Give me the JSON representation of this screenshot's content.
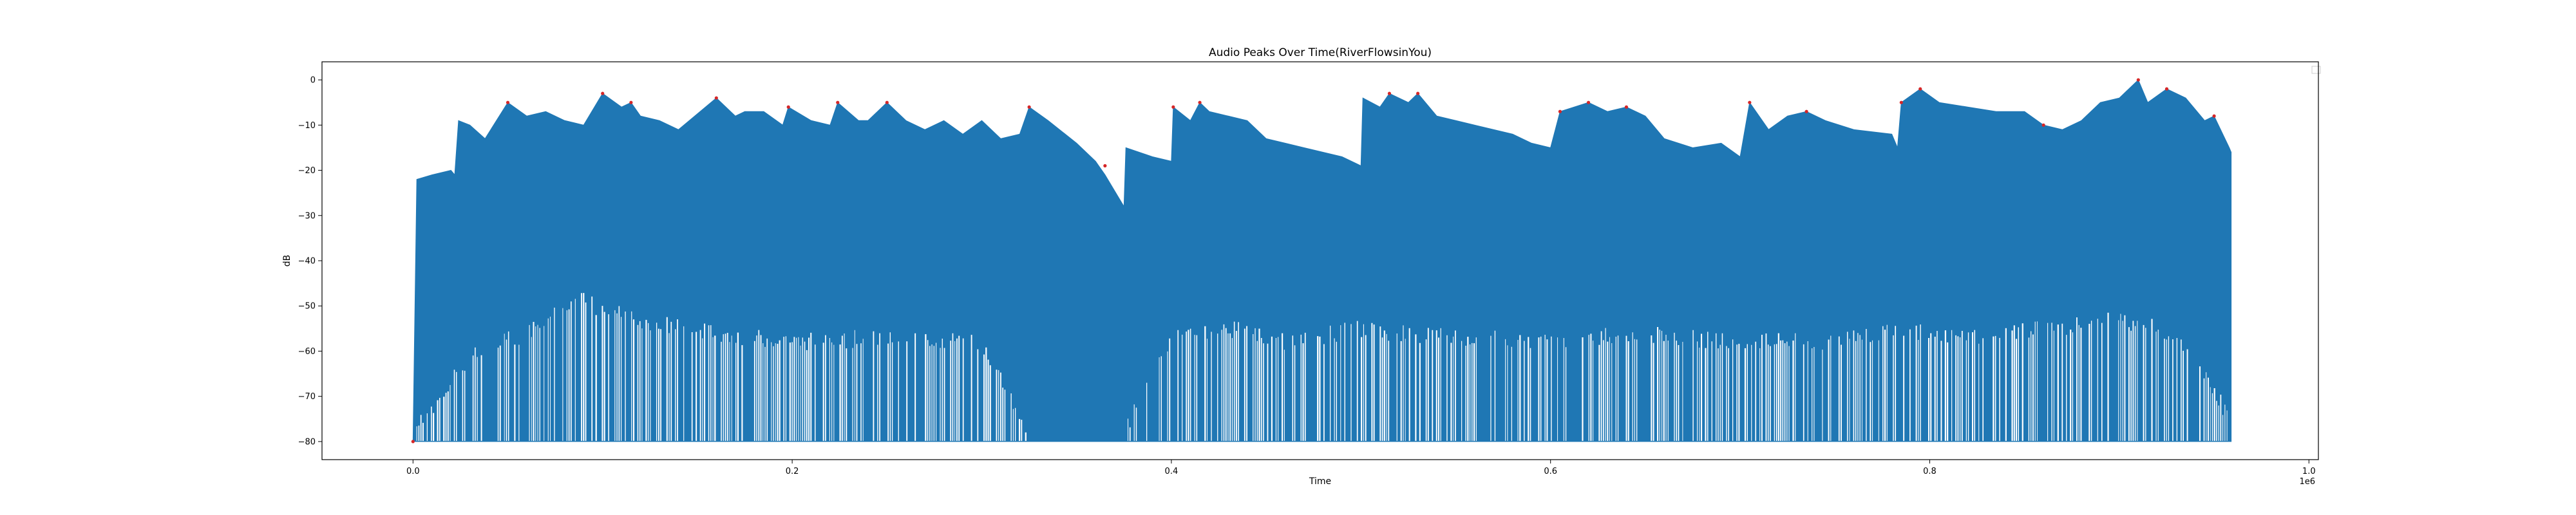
{
  "chart_data": {
    "type": "area",
    "title": "Audio Peaks Over Time(RiverFlowsinYou)",
    "xlabel": "Time",
    "ylabel": "dB",
    "x_offset_label": "1e6",
    "xlim": [
      -0.048,
      1.005
    ],
    "ylim": [
      -84,
      4
    ],
    "xticks": [
      0.0,
      0.2,
      0.4,
      0.6,
      0.8,
      1.0
    ],
    "xtick_labels": [
      "0.0",
      "0.2",
      "0.4",
      "0.6",
      "0.8",
      "1.0"
    ],
    "yticks": [
      0,
      -10,
      -20,
      -30,
      -40,
      -50,
      -60,
      -70,
      -80
    ],
    "ytick_labels": [
      "0",
      "−10",
      "−20",
      "−30",
      "−40",
      "−50",
      "−60",
      "−70",
      "−80"
    ],
    "grid": false,
    "legend": "top-right (empty)",
    "series": [
      {
        "kind": "signal",
        "color": "#1f77b4",
        "floor": -80,
        "upper_envelope": [
          [
            0.0,
            -80
          ],
          [
            0.002,
            -22
          ],
          [
            0.01,
            -21
          ],
          [
            0.02,
            -20
          ],
          [
            0.022,
            -21
          ],
          [
            0.024,
            -9
          ],
          [
            0.03,
            -10
          ],
          [
            0.038,
            -13
          ],
          [
            0.05,
            -5
          ],
          [
            0.06,
            -8
          ],
          [
            0.07,
            -7
          ],
          [
            0.08,
            -9
          ],
          [
            0.09,
            -10
          ],
          [
            0.1,
            -3
          ],
          [
            0.11,
            -6
          ],
          [
            0.115,
            -5
          ],
          [
            0.12,
            -8
          ],
          [
            0.13,
            -9
          ],
          [
            0.14,
            -11
          ],
          [
            0.16,
            -4
          ],
          [
            0.17,
            -8
          ],
          [
            0.175,
            -7
          ],
          [
            0.185,
            -7
          ],
          [
            0.195,
            -10
          ],
          [
            0.198,
            -6
          ],
          [
            0.21,
            -9
          ],
          [
            0.22,
            -10
          ],
          [
            0.224,
            -5
          ],
          [
            0.235,
            -9
          ],
          [
            0.24,
            -9
          ],
          [
            0.25,
            -5
          ],
          [
            0.26,
            -9
          ],
          [
            0.27,
            -11
          ],
          [
            0.28,
            -9
          ],
          [
            0.29,
            -12
          ],
          [
            0.3,
            -9
          ],
          [
            0.31,
            -13
          ],
          [
            0.32,
            -12
          ],
          [
            0.325,
            -6
          ],
          [
            0.335,
            -9
          ],
          [
            0.35,
            -14
          ],
          [
            0.36,
            -18
          ],
          [
            0.365,
            -21
          ],
          [
            0.375,
            -28
          ],
          [
            0.376,
            -15
          ],
          [
            0.39,
            -17
          ],
          [
            0.4,
            -18
          ],
          [
            0.401,
            -6
          ],
          [
            0.41,
            -9
          ],
          [
            0.415,
            -5
          ],
          [
            0.42,
            -7
          ],
          [
            0.43,
            -8
          ],
          [
            0.44,
            -9
          ],
          [
            0.45,
            -13
          ],
          [
            0.46,
            -14
          ],
          [
            0.47,
            -15
          ],
          [
            0.48,
            -16
          ],
          [
            0.49,
            -17
          ],
          [
            0.5,
            -19
          ],
          [
            0.501,
            -4
          ],
          [
            0.51,
            -6
          ],
          [
            0.515,
            -3
          ],
          [
            0.525,
            -5
          ],
          [
            0.53,
            -3
          ],
          [
            0.54,
            -8
          ],
          [
            0.55,
            -9
          ],
          [
            0.56,
            -10
          ],
          [
            0.57,
            -11
          ],
          [
            0.58,
            -12
          ],
          [
            0.59,
            -14
          ],
          [
            0.6,
            -15
          ],
          [
            0.605,
            -7
          ],
          [
            0.62,
            -5
          ],
          [
            0.63,
            -7
          ],
          [
            0.64,
            -6
          ],
          [
            0.65,
            -8
          ],
          [
            0.66,
            -13
          ],
          [
            0.675,
            -15
          ],
          [
            0.69,
            -14
          ],
          [
            0.7,
            -17
          ],
          [
            0.705,
            -5
          ],
          [
            0.715,
            -11
          ],
          [
            0.725,
            -8
          ],
          [
            0.735,
            -7
          ],
          [
            0.745,
            -9
          ],
          [
            0.76,
            -11
          ],
          [
            0.78,
            -12
          ],
          [
            0.783,
            -15
          ],
          [
            0.785,
            -5
          ],
          [
            0.795,
            -2
          ],
          [
            0.805,
            -5
          ],
          [
            0.82,
            -6
          ],
          [
            0.835,
            -7
          ],
          [
            0.85,
            -7
          ],
          [
            0.86,
            -10
          ],
          [
            0.87,
            -11
          ],
          [
            0.88,
            -9
          ],
          [
            0.89,
            -5
          ],
          [
            0.9,
            -4
          ],
          [
            0.91,
            0
          ],
          [
            0.915,
            -5
          ],
          [
            0.925,
            -2
          ],
          [
            0.935,
            -4
          ],
          [
            0.945,
            -9
          ],
          [
            0.95,
            -8
          ],
          [
            0.958,
            -15
          ],
          [
            0.959,
            -16
          ]
        ],
        "lower_envelope": [
          [
            0.0,
            -80
          ],
          [
            0.03,
            -63
          ],
          [
            0.06,
            -58
          ],
          [
            0.085,
            -50
          ],
          [
            0.1,
            -53
          ],
          [
            0.13,
            -56
          ],
          [
            0.16,
            -58
          ],
          [
            0.2,
            -60
          ],
          [
            0.25,
            -59
          ],
          [
            0.3,
            -60
          ],
          [
            0.325,
            -80
          ],
          [
            0.375,
            -80
          ],
          [
            0.4,
            -59
          ],
          [
            0.43,
            -57
          ],
          [
            0.46,
            -60
          ],
          [
            0.5,
            -57
          ],
          [
            0.52,
            -58
          ],
          [
            0.56,
            -59
          ],
          [
            0.6,
            -60
          ],
          [
            0.64,
            -58
          ],
          [
            0.7,
            -60
          ],
          [
            0.74,
            -60
          ],
          [
            0.785,
            -57
          ],
          [
            0.82,
            -59
          ],
          [
            0.86,
            -57
          ],
          [
            0.9,
            -55
          ],
          [
            0.93,
            -58
          ],
          [
            0.959,
            -77
          ]
        ]
      },
      {
        "kind": "peaks",
        "color": "#d62728",
        "points": [
          [
            0.0,
            -80
          ],
          [
            0.05,
            -5
          ],
          [
            0.1,
            -3
          ],
          [
            0.115,
            -5
          ],
          [
            0.16,
            -4
          ],
          [
            0.198,
            -6
          ],
          [
            0.224,
            -5
          ],
          [
            0.25,
            -5
          ],
          [
            0.325,
            -6
          ],
          [
            0.365,
            -19
          ],
          [
            0.401,
            -6
          ],
          [
            0.415,
            -5
          ],
          [
            0.515,
            -3
          ],
          [
            0.53,
            -3
          ],
          [
            0.605,
            -7
          ],
          [
            0.62,
            -5
          ],
          [
            0.64,
            -6
          ],
          [
            0.705,
            -5
          ],
          [
            0.735,
            -7
          ],
          [
            0.785,
            -5
          ],
          [
            0.795,
            -2
          ],
          [
            0.86,
            -10
          ],
          [
            0.91,
            0
          ],
          [
            0.925,
            -2
          ],
          [
            0.95,
            -8
          ]
        ]
      }
    ]
  }
}
